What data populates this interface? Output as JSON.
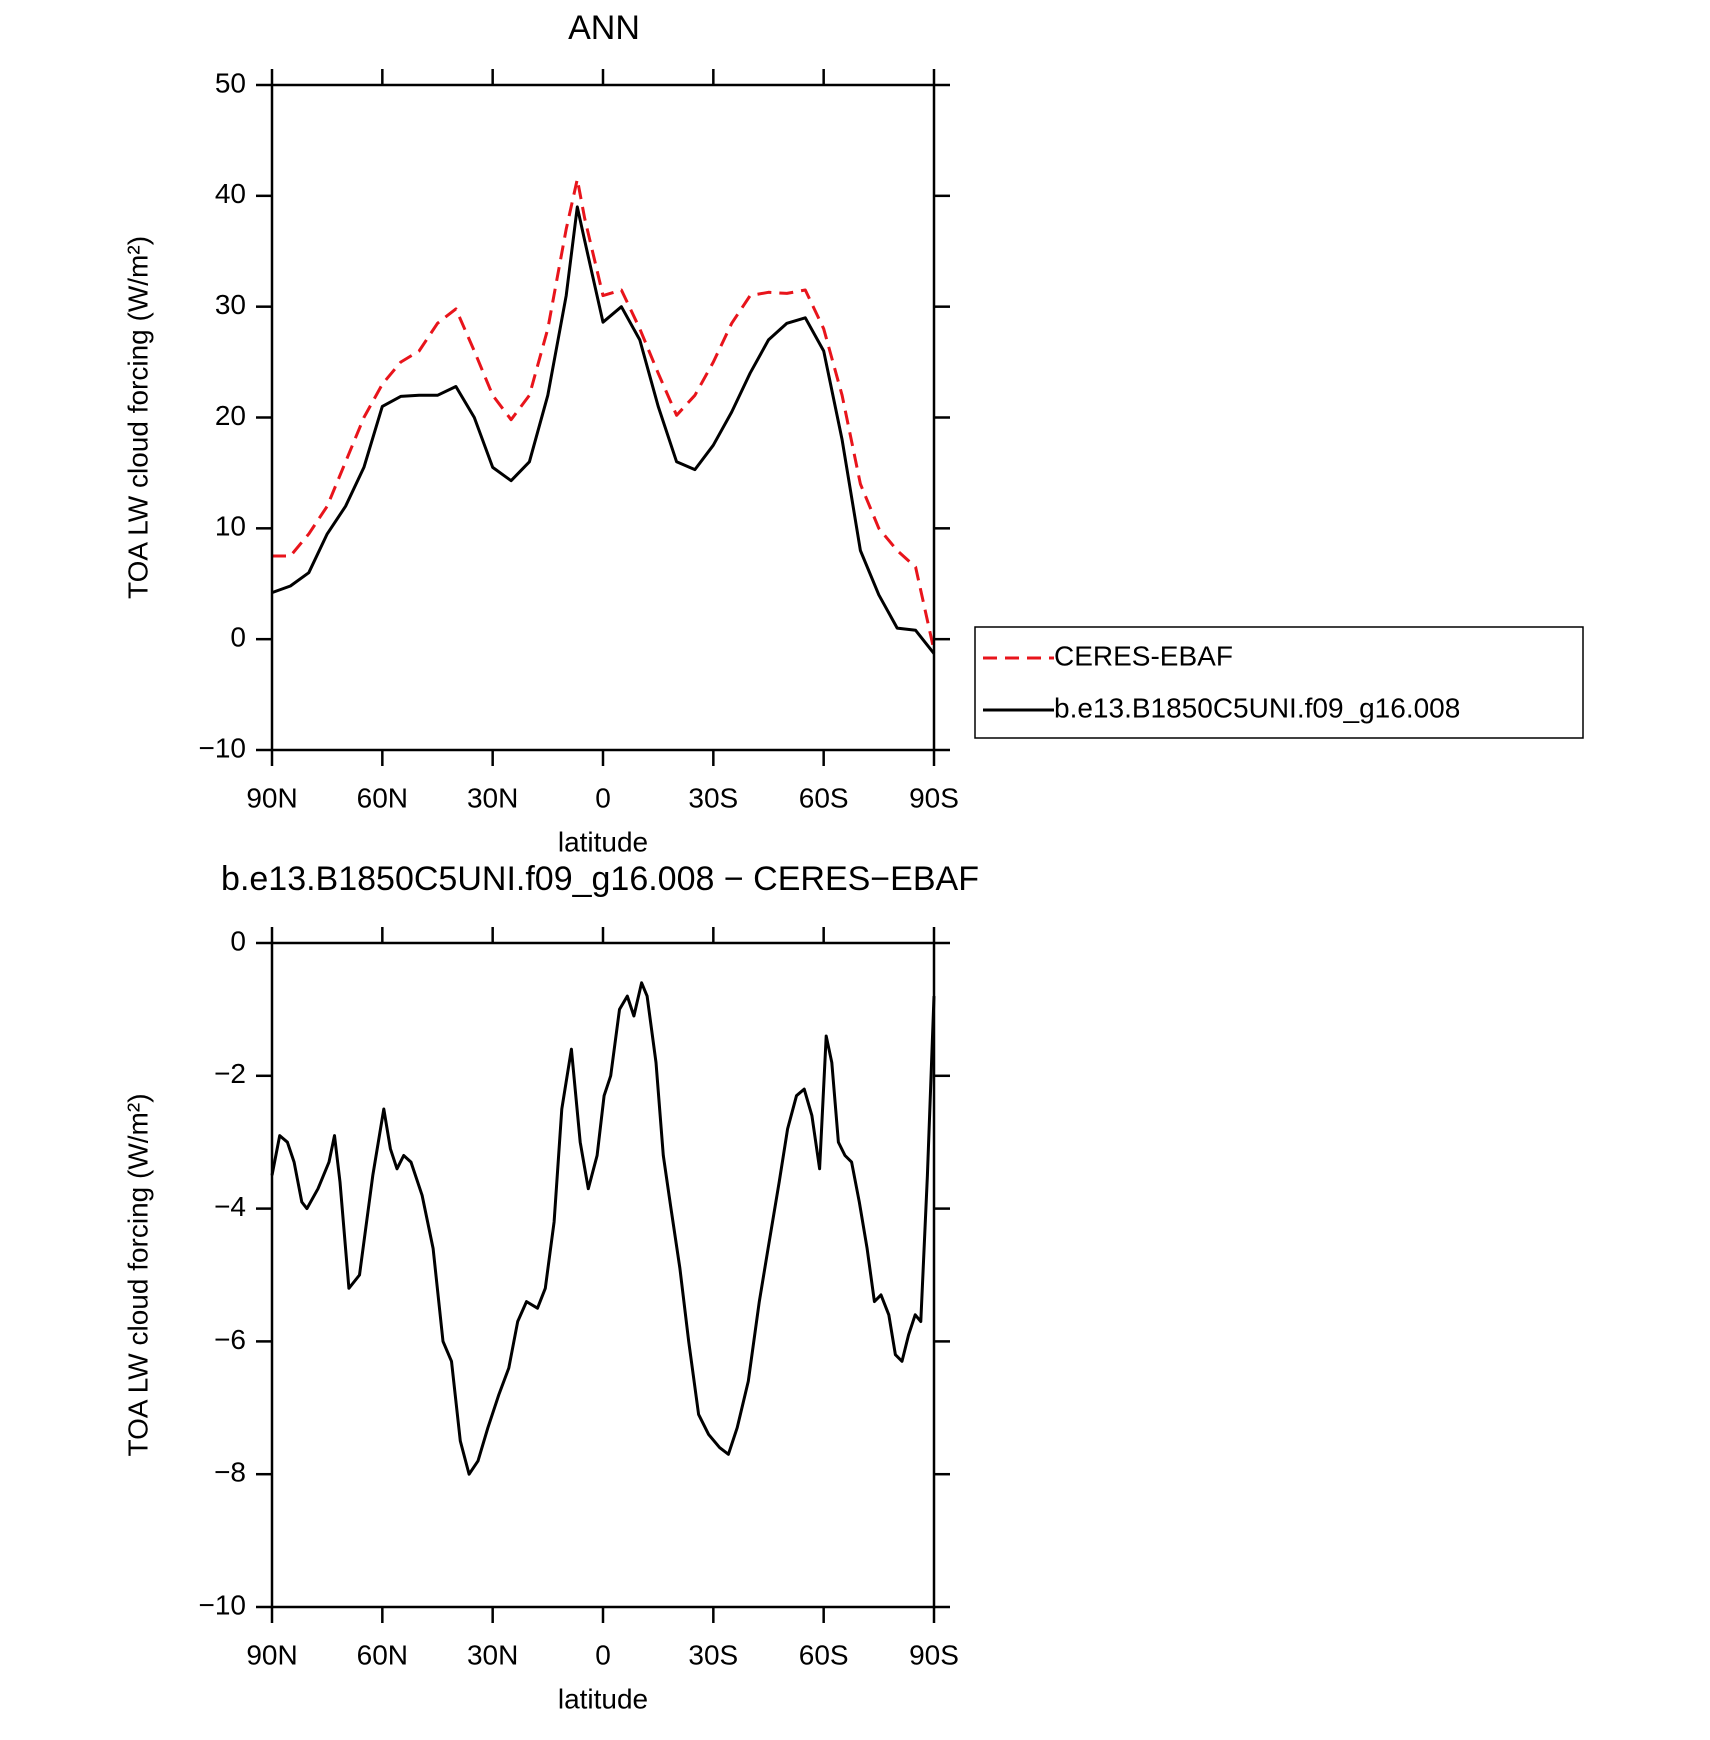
{
  "chart_data": [
    {
      "type": "line",
      "title": "ANN",
      "xlabel": "latitude",
      "ylabel": "TOA LW cloud forcing (W/m²)",
      "x": [
        90,
        85,
        80,
        75,
        70,
        65,
        60,
        55,
        50,
        45,
        40,
        35,
        30,
        25,
        20,
        15,
        10,
        7,
        5,
        0,
        -5,
        -10,
        -15,
        -20,
        -25,
        -30,
        -35,
        -40,
        -45,
        -50,
        -55,
        -60,
        -65,
        -70,
        -75,
        -80,
        -85,
        -90
      ],
      "series": [
        {
          "name": "CERES-EBAF",
          "color": "#e8141b",
          "dash": "dashed",
          "values": [
            7.5,
            7.5,
            9.5,
            12,
            16,
            20,
            23,
            25,
            26,
            28.5,
            29.8,
            26,
            22,
            19.8,
            22,
            28,
            37,
            41.5,
            38,
            31,
            31.5,
            28,
            24,
            20.2,
            22,
            25,
            28.5,
            31,
            31.3,
            31.2,
            31.5,
            28,
            22,
            14,
            10,
            8,
            6.5,
            -1
          ]
        },
        {
          "name": "b.e13.B1850C5UNI.f09_g16.008",
          "color": "#000000",
          "dash": "solid",
          "values": [
            4.2,
            4.8,
            6,
            9.5,
            12,
            15.5,
            21,
            21.9,
            22,
            22,
            22.8,
            20,
            15.5,
            14.3,
            16,
            22,
            31,
            39,
            36,
            28.6,
            30,
            27,
            21,
            16,
            15.3,
            17.5,
            20.5,
            24,
            27,
            28.5,
            29,
            26,
            18,
            8,
            4,
            1,
            0.8,
            -1.3
          ]
        }
      ],
      "xlim": [
        90,
        -90
      ],
      "xticks": [
        {
          "value": 90,
          "label": "90N"
        },
        {
          "value": 60,
          "label": "60N"
        },
        {
          "value": 30,
          "label": "30N"
        },
        0,
        {
          "value": -30,
          "label": "30S"
        },
        {
          "value": -60,
          "label": "60S"
        },
        {
          "value": -90,
          "label": "90S"
        }
      ],
      "ylim": [
        -10,
        50
      ],
      "yticks": [
        {
          "value": -10,
          "label": "−10"
        },
        0,
        10,
        20,
        30,
        40,
        50
      ],
      "legend": "right"
    },
    {
      "type": "line",
      "title": "b.e13.B1850C5UNI.f09_g16.008 − CERES−EBAF",
      "xlabel": "latitude",
      "ylabel": "TOA LW cloud forcing (W/m²)",
      "x": [
        90,
        87.9,
        85.8,
        84,
        81.9,
        80.5,
        77.5,
        74.5,
        73,
        71.5,
        69.1,
        66.2,
        62.6,
        59.6,
        57.8,
        56,
        54.2,
        52.2,
        49.2,
        46.2,
        43.5,
        41.2,
        38.8,
        36.4,
        34,
        31.3,
        28.3,
        25.6,
        23.2,
        20.8,
        17.8,
        15.7,
        13.3,
        11.2,
        8.6,
        6.2,
        4,
        1.6,
        -0.3,
        -2.1,
        -4.5,
        -6.6,
        -8.4,
        -10.5,
        -12,
        -14.4,
        -16.4,
        -18.5,
        -20.9,
        -23.3,
        -26,
        -28.7,
        -31.7,
        -34.1,
        -36.5,
        -39.5,
        -42.5,
        -44.9,
        -47.9,
        -50.2,
        -52.6,
        -54.7,
        -56.8,
        -58.9,
        -60.7,
        -62.2,
        -64,
        -65.8,
        -67.6,
        -69.7,
        -71.8,
        -73.8,
        -75.6,
        -77.7,
        -79.5,
        -81.3,
        -83.1,
        -84.9,
        -86.4,
        -88.2,
        -90
      ],
      "series": [
        {
          "color": "#000000",
          "dash": "solid",
          "values": [
            -3.5,
            -2.9,
            -3.0,
            -3.3,
            -3.9,
            -4.0,
            -3.7,
            -3.3,
            -2.9,
            -3.6,
            -5.2,
            -5.0,
            -3.5,
            -2.5,
            -3.1,
            -3.4,
            -3.2,
            -3.3,
            -3.8,
            -4.6,
            -6.0,
            -6.3,
            -7.5,
            -8.0,
            -7.8,
            -7.3,
            -6.8,
            -6.4,
            -5.7,
            -5.4,
            -5.5,
            -5.2,
            -4.2,
            -2.5,
            -1.6,
            -3.0,
            -3.7,
            -3.2,
            -2.3,
            -2.0,
            -1.0,
            -0.8,
            -1.1,
            -0.6,
            -0.8,
            -1.8,
            -3.2,
            -4.0,
            -4.9,
            -6.0,
            -7.1,
            -7.4,
            -7.6,
            -7.7,
            -7.3,
            -6.6,
            -5.4,
            -4.6,
            -3.6,
            -2.8,
            -2.3,
            -2.2,
            -2.6,
            -3.4,
            -1.4,
            -1.8,
            -3.0,
            -3.2,
            -3.3,
            -3.9,
            -4.6,
            -5.4,
            -5.3,
            -5.6,
            -6.2,
            -6.3,
            -5.9,
            -5.6,
            -5.7,
            -3.5,
            -0.8
          ]
        }
      ],
      "xlim": [
        90,
        -90
      ],
      "xticks": [
        {
          "value": 90,
          "label": "90N"
        },
        {
          "value": 60,
          "label": "60N"
        },
        {
          "value": 30,
          "label": "30N"
        },
        0,
        {
          "value": -30,
          "label": "30S"
        },
        {
          "value": -60,
          "label": "60S"
        },
        {
          "value": -90,
          "label": "90S"
        }
      ],
      "ylim": [
        -10,
        0
      ],
      "yticks": [
        {
          "value": -10,
          "label": "−10"
        },
        {
          "value": -8,
          "label": "−8"
        },
        {
          "value": -6,
          "label": "−6"
        },
        {
          "value": -4,
          "label": "−4"
        },
        {
          "value": -2,
          "label": "−2"
        },
        0
      ]
    }
  ]
}
